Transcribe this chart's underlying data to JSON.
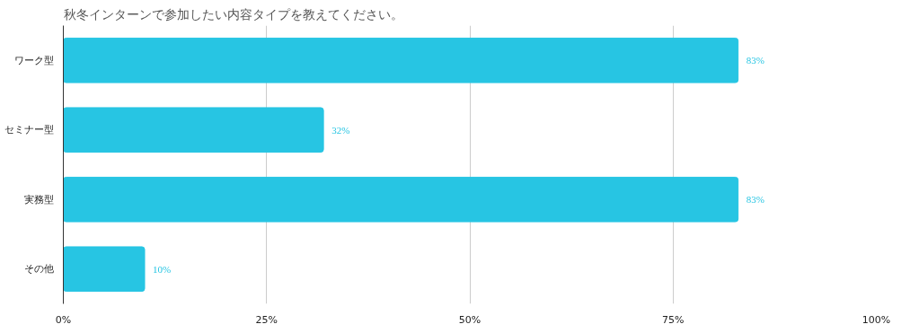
{
  "chart_data": {
    "type": "bar",
    "orientation": "horizontal",
    "title": "秋冬インターンで参加したい内容タイプを教えてください。",
    "categories": [
      "ワーク型",
      "セミナー型",
      "実務型",
      "その他"
    ],
    "values": [
      83,
      32,
      83,
      10
    ],
    "value_labels": [
      "83%",
      "32%",
      "83%",
      "10%"
    ],
    "color": "#27c5e3",
    "xlim": [
      0,
      100
    ],
    "xticks": [
      {
        "value": 0,
        "label": "0%"
      },
      {
        "value": 25,
        "label": "25%"
      },
      {
        "value": 50,
        "label": "50%"
      },
      {
        "value": 75,
        "label": "75%"
      },
      {
        "value": 100,
        "label": "100%"
      }
    ],
    "grid": "x"
  }
}
